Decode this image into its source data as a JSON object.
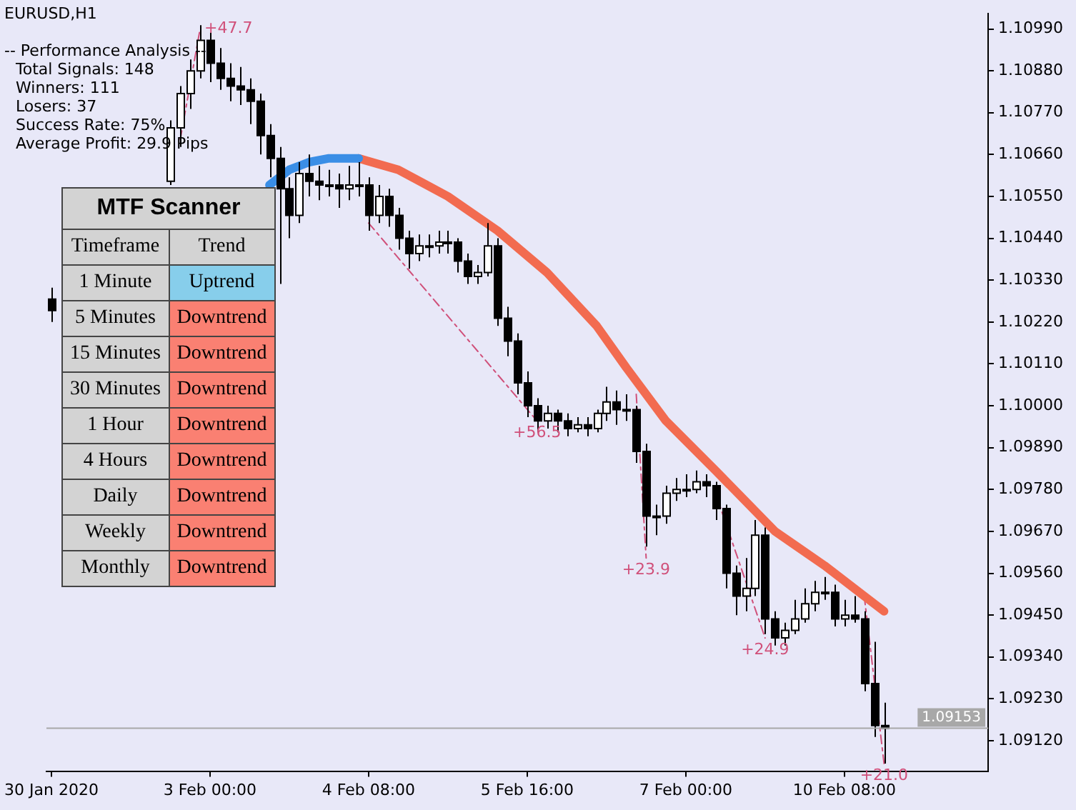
{
  "chart_data": [
    {
      "type": "candlestick",
      "title": "EURUSD,H1",
      "categories": [
        "30 Jan 2020",
        null,
        null,
        null,
        null,
        null,
        null,
        null,
        null,
        null,
        null,
        null,
        null,
        null,
        null,
        null,
        "3 Feb 00:00",
        null,
        null,
        null,
        null,
        null,
        null,
        null,
        null,
        null,
        null,
        null,
        null,
        null,
        null,
        null,
        "4 Feb 08:00",
        null,
        null,
        null,
        null,
        null,
        null,
        null,
        null,
        null,
        null,
        null,
        null,
        null,
        null,
        null,
        "5 Feb 16:00",
        null,
        null,
        null,
        null,
        null,
        null,
        null,
        null,
        null,
        null,
        null,
        null,
        null,
        null,
        null,
        "7 Feb 00:00",
        null,
        null,
        null,
        null,
        null,
        null,
        null,
        null,
        null,
        null,
        null,
        null,
        null,
        null,
        null,
        "10 Feb 08:00",
        null,
        null,
        null,
        null,
        null,
        null,
        null,
        null,
        null,
        null,
        null,
        null,
        null,
        null
      ],
      "ohlc": [
        [
          1.1028,
          1.1031,
          1.1022,
          1.1025
        ],
        null,
        null,
        null,
        null,
        null,
        null,
        null,
        null,
        null,
        null,
        null,
        [
          1.1059,
          1.1075,
          1.1058,
          1.1073
        ],
        [
          1.1073,
          1.1084,
          1.1068,
          1.1082
        ],
        [
          1.1082,
          1.1091,
          1.1078,
          1.1088
        ],
        [
          1.1088,
          1.11,
          1.1086,
          1.1096
        ],
        [
          1.1096,
          1.1098,
          1.1085,
          1.109
        ],
        [
          1.109,
          1.1094,
          1.1083,
          1.1086
        ],
        [
          1.1086,
          1.109,
          1.108,
          1.1084
        ],
        [
          1.1084,
          1.1089,
          1.1079,
          1.1083
        ],
        [
          1.1083,
          1.1086,
          1.1074,
          1.108
        ],
        [
          1.108,
          1.1082,
          1.1066,
          1.1071
        ],
        [
          1.1071,
          1.1074,
          1.106,
          1.1065
        ],
        [
          1.1065,
          1.1068,
          1.1032,
          1.1057
        ],
        [
          1.1057,
          1.106,
          1.1044,
          1.105
        ],
        [
          1.105,
          1.1064,
          1.1048,
          1.1061
        ],
        [
          1.1061,
          1.1066,
          1.1055,
          1.1059
        ],
        [
          1.1059,
          1.1063,
          1.1054,
          1.1058
        ],
        [
          1.1058,
          1.1062,
          1.1055,
          1.1058
        ],
        [
          1.1058,
          1.1061,
          1.1052,
          1.1057
        ],
        [
          1.1057,
          1.1063,
          1.1054,
          1.1058
        ],
        [
          1.1058,
          1.1064,
          1.1055,
          1.1058
        ],
        [
          1.1058,
          1.106,
          1.1046,
          1.105
        ],
        [
          1.105,
          1.1058,
          1.1048,
          1.1055
        ],
        [
          1.1055,
          1.1057,
          1.1047,
          1.105
        ],
        [
          1.105,
          1.1052,
          1.1041,
          1.1044
        ],
        [
          1.1044,
          1.1046,
          1.1036,
          1.104
        ],
        [
          1.104,
          1.1045,
          1.1038,
          1.1042
        ],
        [
          1.1042,
          1.1045,
          1.1039,
          1.1042
        ],
        [
          1.1042,
          1.1046,
          1.104,
          1.1043
        ],
        [
          1.1043,
          1.1046,
          1.104,
          1.1043
        ],
        [
          1.1043,
          1.1044,
          1.1035,
          1.1038
        ],
        [
          1.1038,
          1.104,
          1.1032,
          1.1034
        ],
        [
          1.1034,
          1.1037,
          1.1032,
          1.1035
        ],
        [
          1.1035,
          1.1048,
          1.1034,
          1.1042
        ],
        [
          1.1042,
          1.1044,
          1.1021,
          1.1023
        ],
        [
          1.1023,
          1.1026,
          1.1013,
          1.1017
        ],
        [
          1.1017,
          1.1019,
          1.1003,
          1.1006
        ],
        [
          1.1006,
          1.1009,
          1.0997,
          1.1
        ],
        [
          1.1,
          1.1002,
          1.0993,
          1.0996
        ],
        [
          1.0996,
          1.1,
          1.0994,
          1.0998
        ],
        [
          1.0998,
          1.0999,
          1.0993,
          1.0996
        ],
        [
          1.0996,
          1.0998,
          1.0992,
          1.0994
        ],
        [
          1.0994,
          1.0997,
          1.0993,
          1.0995
        ],
        [
          1.0995,
          1.0997,
          1.0992,
          1.0994
        ],
        [
          1.0994,
          1.0999,
          1.0993,
          1.0998
        ],
        [
          1.0998,
          1.1005,
          1.0996,
          1.1001
        ],
        [
          1.1001,
          1.1004,
          1.0995,
          1.0999
        ],
        [
          1.0999,
          1.1003,
          1.0996,
          1.0999
        ],
        [
          1.0999,
          1.1,
          1.0985,
          1.0988
        ],
        [
          1.0988,
          1.099,
          1.0963,
          1.0971
        ],
        [
          1.0971,
          1.0974,
          1.0966,
          1.0971
        ],
        [
          1.0971,
          1.0979,
          1.0969,
          1.0977
        ],
        [
          1.0977,
          1.0981,
          1.0975,
          1.0978
        ],
        [
          1.0978,
          1.0982,
          1.0976,
          1.0978
        ],
        [
          1.0978,
          1.0983,
          1.0977,
          1.098
        ],
        [
          1.098,
          1.0982,
          1.0976,
          1.0979
        ],
        [
          1.0979,
          1.098,
          1.097,
          1.0973
        ],
        [
          1.0973,
          1.0974,
          1.0952,
          1.0956
        ],
        [
          1.0956,
          1.0958,
          1.0945,
          1.095
        ],
        [
          1.095,
          1.096,
          1.0946,
          1.0952
        ],
        [
          1.0952,
          1.097,
          1.095,
          1.0966
        ],
        [
          1.0966,
          1.0968,
          1.094,
          1.0944
        ],
        [
          1.0944,
          1.0946,
          1.0937,
          1.0939
        ],
        [
          1.0939,
          1.0943,
          1.0937,
          1.0941
        ],
        [
          1.0941,
          1.0949,
          1.094,
          1.0944
        ],
        [
          1.0944,
          1.0952,
          1.0943,
          1.0948
        ],
        [
          1.0948,
          1.0954,
          1.0946,
          1.0951
        ],
        [
          1.0951,
          1.0955,
          1.0949,
          1.0951
        ],
        [
          1.0951,
          1.0953,
          1.0942,
          1.0944
        ],
        [
          1.0944,
          1.0949,
          1.0942,
          1.0945
        ],
        [
          1.0945,
          1.095,
          1.0943,
          1.0944
        ],
        [
          1.0944,
          1.0946,
          1.0925,
          1.0927
        ],
        [
          1.0927,
          1.0938,
          1.0913,
          1.0916
        ],
        [
          1.0916,
          1.0922,
          1.0906,
          1.09153
        ],
        null,
        null,
        null,
        null,
        null,
        null,
        null,
        null,
        null,
        null
      ],
      "series": [
        {
          "type": "line",
          "color": "#3a8ee6",
          "values": [
            null,
            null,
            null,
            null,
            null,
            null,
            null,
            null,
            null,
            null,
            null,
            null,
            null,
            null,
            null,
            null,
            null,
            null,
            null,
            null,
            null,
            null,
            1.1058,
            null,
            1.1062,
            null,
            1.1064,
            null,
            1.1065,
            null,
            1.1065,
            1.1065,
            null,
            null,
            null,
            null,
            null,
            null,
            null,
            null,
            null,
            null,
            null,
            null,
            null,
            null,
            null,
            null,
            null,
            null,
            null,
            null,
            null,
            null,
            null,
            null,
            null,
            null,
            null,
            null,
            null,
            null,
            null,
            null,
            null,
            null,
            null,
            null,
            null,
            null,
            null,
            null,
            null,
            null,
            null,
            null,
            null,
            null,
            null,
            null,
            null,
            null,
            null,
            null,
            null,
            null,
            null,
            null,
            null,
            null,
            null,
            null,
            null,
            null,
            null
          ]
        },
        {
          "type": "line",
          "color": "#f26b50",
          "values": [
            null,
            null,
            null,
            null,
            null,
            null,
            null,
            null,
            null,
            null,
            null,
            null,
            null,
            null,
            null,
            null,
            null,
            null,
            null,
            null,
            null,
            null,
            null,
            null,
            null,
            null,
            null,
            null,
            null,
            null,
            null,
            1.1065,
            null,
            null,
            null,
            1.1062,
            null,
            null,
            null,
            null,
            1.1055,
            null,
            null,
            null,
            null,
            1.1046,
            null,
            null,
            null,
            null,
            1.1035,
            null,
            null,
            null,
            null,
            1.1021,
            null,
            null,
            1.101,
            null,
            null,
            null,
            1.0996,
            null,
            null,
            null,
            null,
            1.0983,
            null,
            null,
            null,
            null,
            null,
            1.0967,
            null,
            null,
            null,
            null,
            1.0958,
            null,
            null,
            null,
            1.095,
            null,
            1.0946,
            null,
            null,
            null,
            null,
            null,
            null,
            null,
            null,
            null,
            null
          ]
        },
        {
          "type": "line",
          "name": "+47.7",
          "color": "#d0507a",
          "line_style": "dashed",
          "values": [
            null,
            null,
            null,
            null,
            null,
            null,
            null,
            null,
            null,
            null,
            null,
            null,
            null,
            1.107,
            null,
            1.1099,
            null,
            null,
            null,
            null,
            null,
            null,
            null,
            null,
            null,
            null,
            null,
            null,
            null,
            null,
            null,
            null,
            null,
            null,
            null,
            null,
            null,
            null,
            null,
            null,
            null,
            null,
            null,
            null,
            null,
            null,
            null,
            null,
            null,
            null,
            null,
            null,
            null,
            null,
            null,
            null,
            null,
            null,
            null,
            null,
            null,
            null,
            null,
            null,
            null,
            null,
            null,
            null,
            null,
            null,
            null,
            null,
            null,
            null,
            null,
            null,
            null,
            null,
            null,
            null,
            null,
            null,
            null,
            null,
            null,
            null,
            null,
            null,
            null,
            null,
            null,
            null,
            null,
            null,
            null
          ]
        },
        {
          "type": "line",
          "name": "+56.5",
          "color": "#d0507a",
          "line_style": "dashed",
          "values": [
            null,
            null,
            null,
            null,
            null,
            null,
            null,
            null,
            null,
            null,
            null,
            null,
            null,
            null,
            null,
            null,
            null,
            null,
            null,
            null,
            null,
            null,
            null,
            null,
            null,
            null,
            null,
            null,
            null,
            null,
            null,
            null,
            1.1048,
            null,
            null,
            null,
            null,
            null,
            null,
            null,
            null,
            null,
            null,
            null,
            null,
            null,
            null,
            null,
            null,
            1.0996,
            null,
            null,
            null,
            null,
            null,
            null,
            null,
            null,
            null,
            null,
            null,
            null,
            null,
            null,
            null,
            null,
            null,
            null,
            null,
            null,
            null,
            null,
            null,
            null,
            null,
            null,
            null,
            null,
            null,
            null,
            null,
            null,
            null,
            null,
            null,
            null,
            null,
            null,
            null,
            null,
            null,
            null,
            null,
            null,
            null
          ]
        },
        {
          "type": "line",
          "name": "+23.9",
          "color": "#d0507a",
          "line_style": "dashed",
          "values": [
            null,
            null,
            null,
            null,
            null,
            null,
            null,
            null,
            null,
            null,
            null,
            null,
            null,
            null,
            null,
            null,
            null,
            null,
            null,
            null,
            null,
            null,
            null,
            null,
            null,
            null,
            null,
            null,
            null,
            null,
            null,
            null,
            null,
            null,
            null,
            null,
            null,
            null,
            null,
            null,
            null,
            null,
            null,
            null,
            null,
            null,
            null,
            null,
            null,
            null,
            null,
            null,
            null,
            null,
            null,
            null,
            null,
            null,
            null,
            1.1003,
            1.096,
            null,
            null,
            null,
            null,
            null,
            null,
            null,
            null,
            null,
            null,
            null,
            null,
            null,
            null,
            null,
            null,
            null,
            null,
            null,
            null,
            null,
            null,
            null,
            null,
            null,
            null,
            null,
            null,
            null,
            null,
            null,
            null,
            null,
            null
          ]
        },
        {
          "type": "line",
          "name": "+24.9",
          "color": "#d0507a",
          "line_style": "dashed",
          "values": [
            null,
            null,
            null,
            null,
            null,
            null,
            null,
            null,
            null,
            null,
            null,
            null,
            null,
            null,
            null,
            null,
            null,
            null,
            null,
            null,
            null,
            null,
            null,
            null,
            null,
            null,
            null,
            null,
            null,
            null,
            null,
            null,
            null,
            null,
            null,
            null,
            null,
            null,
            null,
            null,
            null,
            null,
            null,
            null,
            null,
            null,
            null,
            null,
            null,
            null,
            null,
            null,
            null,
            null,
            null,
            null,
            null,
            null,
            null,
            null,
            null,
            null,
            null,
            null,
            null,
            null,
            null,
            1.0977,
            null,
            null,
            null,
            null,
            1.0939,
            null,
            null,
            null,
            null,
            null,
            null,
            null,
            null,
            null,
            null,
            null,
            null,
            null,
            null,
            null,
            null,
            null,
            null,
            null,
            null,
            null,
            null
          ]
        },
        {
          "type": "line",
          "name": "+21.0",
          "color": "#d0507a",
          "line_style": "dashed",
          "values": [
            null,
            null,
            null,
            null,
            null,
            null,
            null,
            null,
            null,
            null,
            null,
            null,
            null,
            null,
            null,
            null,
            null,
            null,
            null,
            null,
            null,
            null,
            null,
            null,
            null,
            null,
            null,
            null,
            null,
            null,
            null,
            null,
            null,
            null,
            null,
            null,
            null,
            null,
            null,
            null,
            null,
            null,
            null,
            null,
            null,
            null,
            null,
            null,
            null,
            null,
            null,
            null,
            null,
            null,
            null,
            null,
            null,
            null,
            null,
            null,
            null,
            null,
            null,
            null,
            null,
            null,
            null,
            null,
            null,
            null,
            null,
            null,
            null,
            null,
            null,
            null,
            null,
            null,
            null,
            null,
            null,
            null,
            1.095,
            null,
            1.0906,
            null,
            null,
            null,
            null,
            null,
            null,
            null,
            null,
            null,
            null
          ]
        }
      ],
      "marker": "none",
      "grid": false,
      "legend": false,
      "ylim": [
        1.0904,
        1.1103
      ],
      "yticks": [
        {
          "value": 1.0912,
          "label": "1.09120"
        },
        {
          "value": 1.0923,
          "label": "1.09230"
        },
        {
          "value": 1.0934,
          "label": "1.09340"
        },
        {
          "value": 1.0945,
          "label": "1.09450"
        },
        {
          "value": 1.0956,
          "label": "1.09560"
        },
        {
          "value": 1.0967,
          "label": "1.09670"
        },
        {
          "value": 1.0978,
          "label": "1.09780"
        },
        {
          "value": 1.0989,
          "label": "1.09890"
        },
        {
          "value": 1.1,
          "label": "1.10000"
        },
        {
          "value": 1.1011,
          "label": "1.10110"
        },
        {
          "value": 1.1022,
          "label": "1.10220"
        },
        {
          "value": 1.1033,
          "label": "1.10330"
        },
        {
          "value": 1.1044,
          "label": "1.10440"
        },
        {
          "value": 1.1055,
          "label": "1.10550"
        },
        {
          "value": 1.1066,
          "label": "1.10660"
        },
        {
          "value": 1.1077,
          "label": "1.10770"
        },
        {
          "value": 1.1088,
          "label": "1.10880"
        },
        {
          "value": 1.1099,
          "label": "1.10990"
        }
      ],
      "ref_lines": [
        {
          "axis": "y",
          "value": 1.09153,
          "label": "1.09153",
          "color": "#a8a8a8"
        }
      ],
      "annotations": [
        "-- Performance Analysis --",
        "Total Signals: 148",
        "Winners: 111",
        "Losers: 37",
        "Success Rate: 75%",
        "Average Profit: 29.9 Pips"
      ]
    },
    {
      "type": "other",
      "title": "MTF Scanner",
      "annotations": [
        "Timeframe",
        "Trend",
        "1 Minute",
        "Uptrend",
        "5 Minutes",
        "Downtrend",
        "15 Minutes",
        "Downtrend",
        "30 Minutes",
        "Downtrend",
        "1 Hour",
        "Downtrend",
        "4 Hours",
        "Downtrend",
        "Daily",
        "Downtrend",
        "Weekly",
        "Downtrend",
        "Monthly",
        "Downtrend"
      ],
      "colors": [
        "#d3d3d3",
        "#d3d3d3",
        "#d3d3d3",
        "#87ceeb",
        "#d3d3d3",
        "#fa8072",
        "#d3d3d3",
        "#fa8072",
        "#d3d3d3",
        "#fa8072",
        "#d3d3d3",
        "#fa8072",
        "#d3d3d3",
        "#fa8072",
        "#d3d3d3",
        "#fa8072",
        "#d3d3d3",
        "#fa8072",
        "#d3d3d3",
        "#fa8072"
      ]
    }
  ]
}
